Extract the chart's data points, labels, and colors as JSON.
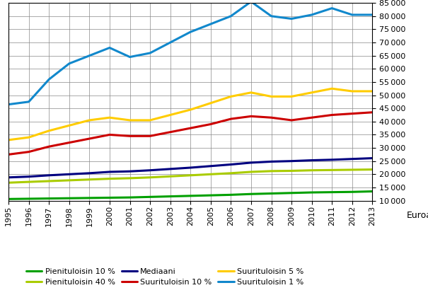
{
  "years": [
    1995,
    1996,
    1997,
    1998,
    1999,
    2000,
    2001,
    2002,
    2003,
    2004,
    2005,
    2006,
    2007,
    2008,
    2009,
    2010,
    2011,
    2012,
    2013
  ],
  "pienituloisin_10": [
    10600,
    10700,
    10800,
    10900,
    11000,
    11100,
    11200,
    11400,
    11600,
    11800,
    12000,
    12200,
    12500,
    12700,
    12900,
    13100,
    13200,
    13300,
    13500
  ],
  "pienituloisin_40": [
    16800,
    17100,
    17400,
    17700,
    18000,
    18300,
    18500,
    18800,
    19200,
    19600,
    20000,
    20400,
    20900,
    21200,
    21300,
    21500,
    21600,
    21700,
    21800
  ],
  "mediaani": [
    18800,
    19100,
    19600,
    20000,
    20400,
    20900,
    21100,
    21500,
    22000,
    22500,
    23100,
    23700,
    24400,
    24800,
    25000,
    25300,
    25500,
    25800,
    26100
  ],
  "suurituloisin_10": [
    27500,
    28500,
    30500,
    32000,
    33500,
    35000,
    34500,
    34500,
    36000,
    37500,
    39000,
    41000,
    42000,
    41500,
    40500,
    41500,
    42500,
    43000,
    43500
  ],
  "suurituloisin_5": [
    33000,
    34000,
    36500,
    38500,
    40500,
    41500,
    40500,
    40500,
    42500,
    44500,
    47000,
    49500,
    51000,
    49500,
    49500,
    51000,
    52500,
    51500,
    51500
  ],
  "suurituloisin_1": [
    46500,
    47500,
    56000,
    62000,
    65000,
    68000,
    64500,
    66000,
    70000,
    74000,
    77000,
    80000,
    85500,
    80000,
    79000,
    80500,
    83000,
    80500,
    80500
  ],
  "colors": {
    "pienituloisin_10": "#00a000",
    "pienituloisin_40": "#aacc00",
    "mediaani": "#000080",
    "suurituloisin_10": "#cc0000",
    "suurituloisin_5": "#ffcc00",
    "suurituloisin_1": "#1188cc"
  },
  "ylim": [
    10000,
    85000
  ],
  "yticks": [
    10000,
    15000,
    20000,
    25000,
    30000,
    35000,
    40000,
    45000,
    50000,
    55000,
    60000,
    65000,
    70000,
    75000,
    80000,
    85000
  ],
  "ylabel": "Euroa",
  "legend_labels": [
    "Pienituloisin 10 %",
    "Pienituloisin 40 %",
    "Mediaani",
    "Suurituloisin 10 %",
    "Suurituloisin 5 %",
    "Suurituloisin 1 %"
  ]
}
